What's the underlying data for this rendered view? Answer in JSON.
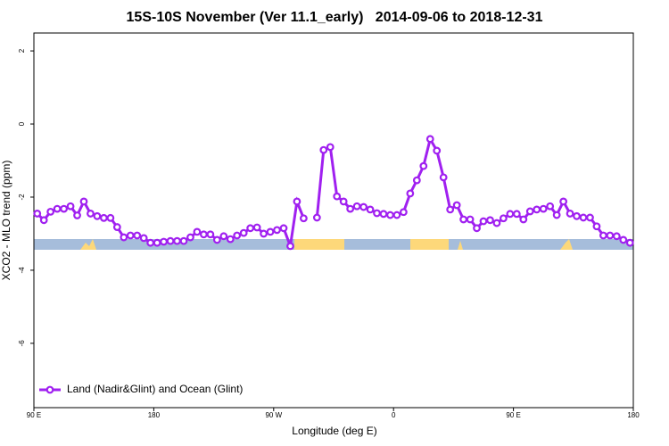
{
  "chart_data": {
    "type": "line",
    "title": "15S-10S November (Ver 11.1_early)   2014-09-06 to 2018-12-31",
    "x_label": "Longitude (deg E)",
    "y_label": "XCO2 - MLO trend (ppm)",
    "x": [
      92.5,
      97.5,
      102.5,
      107.5,
      112.5,
      117.5,
      122.5,
      127.5,
      132.5,
      137.5,
      142.5,
      147.5,
      152.5,
      157.5,
      162.5,
      167.5,
      172.5,
      177.5,
      182.5,
      187.5,
      192.5,
      197.5,
      202.5,
      207.5,
      212.5,
      217.5,
      222.5,
      227.5,
      232.5,
      237.5,
      242.5,
      247.5,
      252.5,
      257.5,
      262.5,
      267.5,
      272.5,
      277.5,
      282.5,
      287.5,
      292.5,
      297.5,
      302.5,
      307.5,
      312.5,
      317.5,
      322.5,
      327.5,
      332.5,
      337.5,
      342.5,
      347.5,
      352.5,
      357.5,
      362.5,
      367.5,
      372.5,
      377.5,
      382.5,
      387.5,
      392.5,
      397.5,
      402.5,
      407.5,
      412.5,
      417.5,
      422.5,
      427.5,
      432.5,
      437.5,
      442.5,
      447.5,
      452.5,
      457.5,
      462.5,
      467.5,
      472.5,
      477.5,
      482.5,
      487.5,
      492.5,
      497.5,
      502.5,
      507.5,
      512.5,
      517.5,
      522.5,
      527.5,
      532.5,
      537.5
    ],
    "series": [
      {
        "name": "Land (Nadir&Glint) and Ocean (Glint)",
        "color": "#a020f0",
        "values": [
          -2.45,
          -2.63,
          -2.4,
          -2.32,
          -2.32,
          -2.25,
          -2.5,
          -2.12,
          -2.45,
          -2.52,
          -2.57,
          -2.57,
          -2.82,
          -3.1,
          -3.05,
          -3.05,
          -3.12,
          -3.25,
          -3.25,
          -3.22,
          -3.2,
          -3.2,
          -3.2,
          -3.1,
          -2.95,
          -3.02,
          -3.02,
          -3.17,
          -3.07,
          -3.15,
          -3.05,
          -2.98,
          -2.85,
          -2.83,
          -3.0,
          -2.95,
          -2.9,
          -2.85,
          -3.34,
          -2.12,
          -2.58,
          null,
          -2.56,
          -0.71,
          -0.63,
          -1.98,
          -2.12,
          -2.32,
          -2.25,
          -2.27,
          -2.34,
          -2.44,
          -2.46,
          -2.49,
          -2.49,
          -2.41,
          -1.9,
          -1.54,
          -1.15,
          -0.41,
          -0.73,
          -1.46,
          -2.34,
          -2.22,
          -2.61,
          -2.61,
          -2.85,
          -2.66,
          -2.63,
          -2.71,
          -2.58,
          -2.46,
          -2.46,
          -2.61,
          -2.39,
          -2.34,
          -2.32,
          -2.25,
          -2.49,
          -2.12,
          -2.45,
          -2.52,
          -2.56,
          -2.56,
          -2.8,
          -3.05,
          -3.05,
          -3.07,
          -3.17,
          -3.25
        ]
      }
    ],
    "xlim": [
      90,
      540
    ],
    "xticks": [
      {
        "value": 90,
        "label": "90 E"
      },
      {
        "value": 180,
        "label": "180"
      },
      {
        "value": 270,
        "label": "90 W"
      },
      {
        "value": 360,
        "label": "0"
      },
      {
        "value": 450,
        "label": "90 E"
      },
      {
        "value": 540,
        "label": "180"
      }
    ],
    "ylim": [
      -7.76,
      2.49
    ],
    "yticks": [
      -6,
      -4,
      -2,
      0,
      2
    ],
    "legend": "bottom-left"
  }
}
